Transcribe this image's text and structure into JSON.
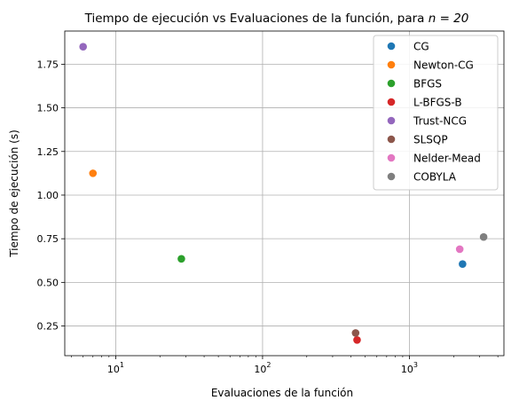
{
  "chart_data": {
    "type": "scatter",
    "title": "Tiempo de ejecución vs Evaluaciones de la función, para n = 20",
    "title_prefix": "Tiempo de ejecución vs Evaluaciones de la función, para ",
    "title_math": "n = 20",
    "xlabel": "Evaluaciones de la función",
    "ylabel": "Tiempo de ejecución (s)",
    "xscale": "log",
    "xlim": [
      4.5,
      4400
    ],
    "ylim": [
      0.08,
      1.94
    ],
    "xticks": [
      {
        "base": "10",
        "exp": "1",
        "value": 10
      },
      {
        "base": "10",
        "exp": "2",
        "value": 100
      },
      {
        "base": "10",
        "exp": "3",
        "value": 1000
      }
    ],
    "yticks": [
      "0.25",
      "0.50",
      "0.75",
      "1.00",
      "1.25",
      "1.50",
      "1.75"
    ],
    "grid": true,
    "legend_position": "upper right",
    "series": [
      {
        "name": "CG",
        "color": "#1f77b4",
        "x": 2300,
        "y": 0.605
      },
      {
        "name": "Newton-CG",
        "color": "#ff7f0e",
        "x": 7,
        "y": 1.125
      },
      {
        "name": "BFGS",
        "color": "#2ca02c",
        "x": 28,
        "y": 0.635
      },
      {
        "name": "L-BFGS-B",
        "color": "#d62728",
        "x": 440,
        "y": 0.17
      },
      {
        "name": "Trust-NCG",
        "color": "#9467bd",
        "x": 6,
        "y": 1.85
      },
      {
        "name": "SLSQP",
        "color": "#8c564b",
        "x": 430,
        "y": 0.21
      },
      {
        "name": "Nelder-Mead",
        "color": "#e377c2",
        "x": 2200,
        "y": 0.69
      },
      {
        "name": "COBYLA",
        "color": "#7f7f7f",
        "x": 3200,
        "y": 0.76
      }
    ]
  }
}
